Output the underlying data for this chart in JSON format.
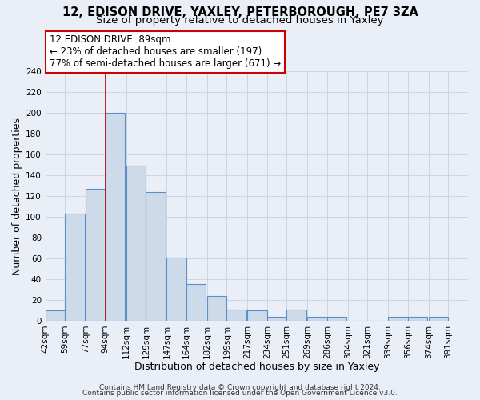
{
  "title": "12, EDISON DRIVE, YAXLEY, PETERBOROUGH, PE7 3ZA",
  "subtitle": "Size of property relative to detached houses in Yaxley",
  "xlabel": "Distribution of detached houses by size in Yaxley",
  "ylabel": "Number of detached properties",
  "bar_left_edges": [
    42,
    59,
    77,
    94,
    112,
    129,
    147,
    164,
    182,
    199,
    217,
    234,
    251,
    269,
    286,
    304,
    321,
    339,
    356,
    374
  ],
  "bar_heights": [
    10,
    103,
    127,
    200,
    149,
    124,
    61,
    35,
    24,
    11,
    10,
    4,
    11,
    4,
    4,
    0,
    0,
    4,
    4,
    4
  ],
  "bin_width": 17,
  "tick_labels": [
    "42sqm",
    "59sqm",
    "77sqm",
    "94sqm",
    "112sqm",
    "129sqm",
    "147sqm",
    "164sqm",
    "182sqm",
    "199sqm",
    "217sqm",
    "234sqm",
    "251sqm",
    "269sqm",
    "286sqm",
    "304sqm",
    "321sqm",
    "339sqm",
    "356sqm",
    "374sqm",
    "391sqm"
  ],
  "bar_color": "#cddaea",
  "bar_edge_color": "#5b8fc9",
  "grid_color": "#c8d0dc",
  "background_color": "#eaeff7",
  "property_line_x": 94,
  "property_line_color": "#aa0000",
  "annotation_title": "12 EDISON DRIVE: 89sqm",
  "annotation_line1": "← 23% of detached houses are smaller (197)",
  "annotation_line2": "77% of semi-detached houses are larger (671) →",
  "annotation_box_color": "#ffffff",
  "annotation_box_edge_color": "#cc0000",
  "ylim": [
    0,
    240
  ],
  "yticks": [
    0,
    20,
    40,
    60,
    80,
    100,
    120,
    140,
    160,
    180,
    200,
    220,
    240
  ],
  "footer1": "Contains HM Land Registry data © Crown copyright and database right 2024.",
  "footer2": "Contains public sector information licensed under the Open Government Licence v3.0.",
  "title_fontsize": 10.5,
  "subtitle_fontsize": 9.5,
  "axis_label_fontsize": 9,
  "tick_fontsize": 7.5,
  "annotation_fontsize": 8.5,
  "footer_fontsize": 6.5
}
